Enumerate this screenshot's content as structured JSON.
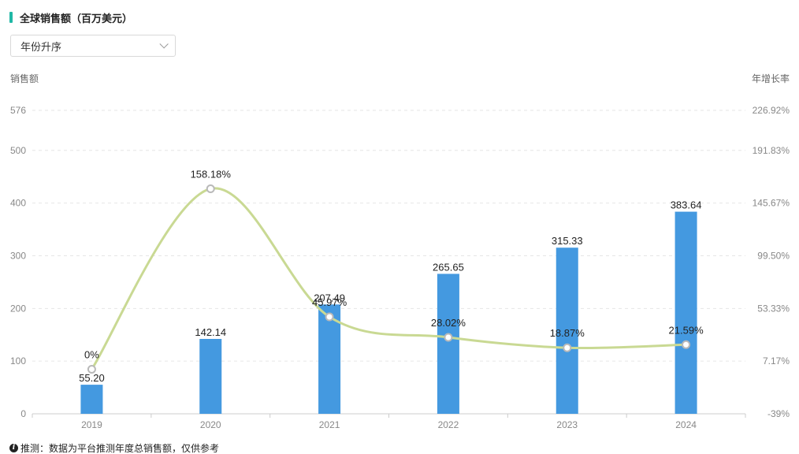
{
  "title": "全球销售额（百万美元）",
  "sort_select": {
    "value": "年份升序"
  },
  "left_axis_title": "销售额",
  "right_axis_title": "年增长率",
  "footnote": "推测：数据为平台推测年度总销售额，仅供参考",
  "colors": {
    "accent": "#20b8a6",
    "bar": "#4499e0",
    "line": "#c9d993"
  },
  "chart_data": {
    "type": "bar",
    "categories": [
      "2019",
      "2020",
      "2021",
      "2022",
      "2023",
      "2024"
    ],
    "series": [
      {
        "values": [
          55.2,
          142.14,
          207.49,
          265.65,
          315.33,
          383.64
        ],
        "labels": [
          "55.20",
          "142.14",
          "207.49",
          "265.65",
          "315.33",
          "383.64"
        ],
        "axis": "left",
        "kind": "bar"
      },
      {
        "values": [
          0,
          158.18,
          45.97,
          28.02,
          18.87,
          21.59
        ],
        "labels": [
          "0%",
          "158.18%",
          "45.97%",
          "28.02%",
          "18.87%",
          "21.59%"
        ],
        "axis": "right",
        "kind": "line"
      }
    ],
    "left_axis": {
      "min": 0,
      "max": 576,
      "ticks": [
        "0",
        "100",
        "200",
        "300",
        "400",
        "500",
        "576"
      ]
    },
    "right_axis": {
      "min": -39,
      "max": 226.92,
      "ticks": [
        "-39%",
        "7.17%",
        "53.33%",
        "99.50%",
        "145.67%",
        "191.83%",
        "226.92%"
      ]
    },
    "grid": true
  }
}
